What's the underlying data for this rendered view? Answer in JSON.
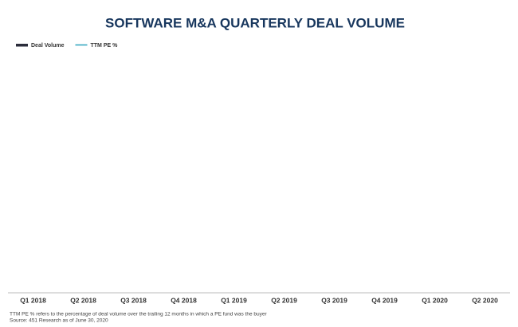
{
  "chart_data": {
    "type": "bar",
    "title": "SOFTWARE M&A QUARTERLY DEAL VOLUME",
    "categories": [
      "Q1 2018",
      "Q2 2018",
      "Q3 2018",
      "Q4 2018",
      "Q1 2019",
      "Q2 2019",
      "Q3 2019",
      "Q4 2019",
      "Q1 2020",
      "Q2 2020"
    ],
    "series": [
      {
        "name": "Deal Volume",
        "color": "#2b2d3b",
        "values": [
          null,
          null,
          null,
          null,
          null,
          null,
          null,
          null,
          null,
          null
        ]
      },
      {
        "name": "TTM PE %",
        "color": "#2ba3bd",
        "values": [
          null,
          null,
          null,
          null,
          null,
          null,
          null,
          null,
          null,
          null
        ]
      }
    ],
    "notes": [
      "TTM PE % refers to the percentage of deal volume over the trailing 12 months in which a PE fund was the buyer",
      "Source: 451 Research as of June 30, 2020"
    ]
  }
}
